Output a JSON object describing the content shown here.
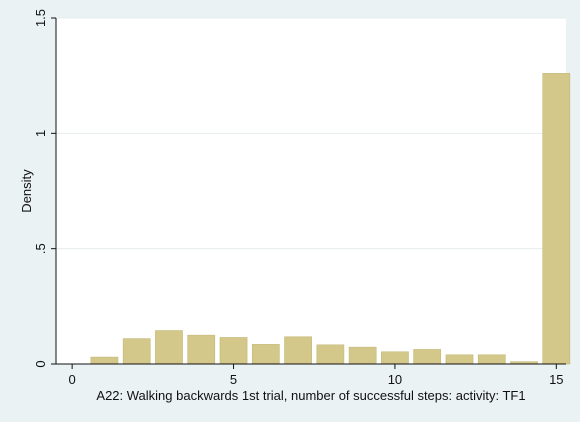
{
  "chart_data": {
    "type": "bar",
    "title": "",
    "xlabel": "A22: Walking backwards 1st trial, number of successful steps: activity: TF1",
    "ylabel": "Density",
    "xlim": [
      -0.5,
      15.3
    ],
    "ylim": [
      0,
      1.5
    ],
    "x_ticks": [
      0,
      5,
      10,
      15
    ],
    "x_tick_labels": [
      "0",
      "5",
      "10",
      "15"
    ],
    "y_ticks": [
      0,
      0.5,
      1,
      1.5
    ],
    "y_tick_labels": [
      "0",
      ".5",
      "1",
      "1.5"
    ],
    "grid": true,
    "bar_color": "#d3c889",
    "bar_edge_color": "#c2b878",
    "x": [
      1,
      2,
      3,
      4,
      5,
      6,
      7,
      8,
      9,
      10,
      11,
      12,
      13,
      14,
      15
    ],
    "values": [
      0.03,
      0.11,
      0.145,
      0.125,
      0.115,
      0.085,
      0.118,
      0.083,
      0.073,
      0.053,
      0.063,
      0.04,
      0.04,
      0.01,
      1.26
    ]
  }
}
